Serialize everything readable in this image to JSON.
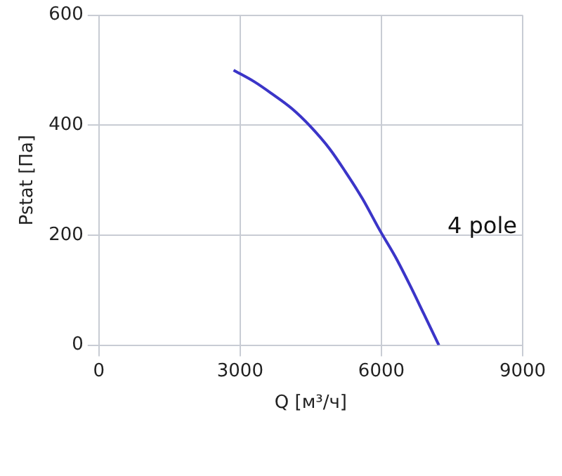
{
  "chart_data": {
    "type": "line",
    "xlabel": "Q [м³/ч]",
    "ylabel": "Pstat [Па]",
    "annotations": [
      "4 pole"
    ],
    "x": [
      2860,
      3300,
      3660,
      4100,
      4500,
      4900,
      5230,
      5600,
      5965,
      6300,
      6600,
      6900,
      7220
    ],
    "series": [
      {
        "color": "#3b35c8",
        "values": [
          500,
          479,
          458,
          430,
          397,
          357,
          316,
          266,
          209,
          160,
          110,
          57,
          0
        ]
      }
    ],
    "xlim": [
      0,
      9000
    ],
    "xticks": [
      0,
      3000,
      6000,
      9000
    ],
    "ylim": [
      0,
      600
    ],
    "yticks": [
      0,
      200,
      400,
      600
    ],
    "grid": true,
    "legend": false,
    "marker": "none",
    "line_style": "solid"
  }
}
